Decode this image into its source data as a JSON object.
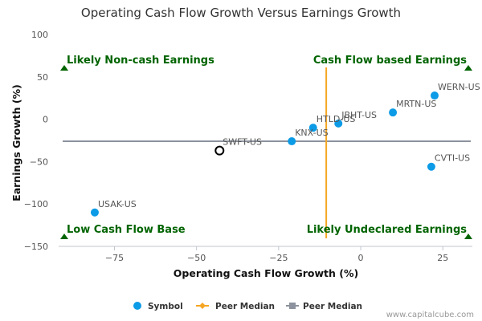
{
  "chart_data": {
    "type": "scatter",
    "title": "Operating Cash Flow Growth Versus Earnings Growth",
    "xlabel": "Operating Cash Flow Growth (%)",
    "ylabel": "Earnings Growth (%)",
    "xlim": [
      -92,
      34
    ],
    "ylim": [
      -150,
      100
    ],
    "x_ticks": [
      -75,
      -50,
      -25,
      0,
      25
    ],
    "y_ticks": [
      100,
      50,
      0,
      -50,
      -100,
      -150
    ],
    "grid": false,
    "points": [
      {
        "label": "WERN-US",
        "x": 22.5,
        "y": 28,
        "highlight": false
      },
      {
        "label": "MRTN-US",
        "x": 9.8,
        "y": 8,
        "highlight": false
      },
      {
        "label": "JBHT-US",
        "x": -6.8,
        "y": -5,
        "highlight": false
      },
      {
        "label": "HTLD-US",
        "x": -14.5,
        "y": -10,
        "highlight": false
      },
      {
        "label": "KNX-US",
        "x": -21,
        "y": -26,
        "highlight": false
      },
      {
        "label": "SWFT-US",
        "x": -43,
        "y": -37,
        "highlight": true
      },
      {
        "label": "CVTI-US",
        "x": 21.5,
        "y": -56,
        "highlight": false
      },
      {
        "label": "USAK-US",
        "x": -81,
        "y": -110,
        "highlight": false
      }
    ],
    "peer_median_x": -10.5,
    "peer_median_y": -26,
    "quadrant_labels": {
      "top_left": "Likely Non-cash Earnings",
      "top_right": "Cash Flow based Earnings",
      "bottom_left": "Low Cash Flow Base",
      "bottom_right": "Likely Undeclared Earnings"
    },
    "legend": {
      "position": "bottom",
      "items": [
        {
          "label": "Symbol",
          "color": "#0c9be6",
          "shape": "circle"
        },
        {
          "label": "Peer Median",
          "color": "#f5a623",
          "shape": "line-diamond"
        },
        {
          "label": "Peer Median",
          "color": "#8c939e",
          "shape": "line-square"
        }
      ]
    },
    "colors": {
      "point": "#0c9be6",
      "highlight_stroke": "#000000",
      "median_x_line": "#f5a623",
      "median_y_line": "#8c939e",
      "quadrant_text": "#006400",
      "triangle": "#006400"
    }
  },
  "credit": "www.capitalcube.com"
}
